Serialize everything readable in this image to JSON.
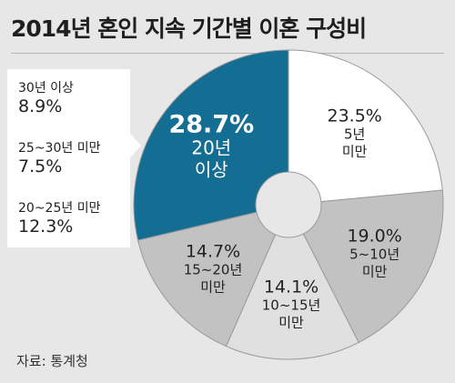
{
  "title": "2014년 혼인 지속 기간별 이혼 구성비",
  "source": "자료: 통계청",
  "chart_data": {
    "type": "pie",
    "style": "donut",
    "start_angle_deg": 0,
    "direction": "clockwise",
    "slices": [
      {
        "label": "5년 미만",
        "value": 23.5,
        "display": "23.5%",
        "color": "#ffffff",
        "text_color": "#222222"
      },
      {
        "label": "5~10년 미만",
        "value": 19.0,
        "display": "19.0%",
        "color": "#c2c2c2",
        "text_color": "#222222"
      },
      {
        "label": "10~15년 미만",
        "value": 14.1,
        "display": "14.1%",
        "color": "#e0e0e0",
        "text_color": "#222222"
      },
      {
        "label": "15~20년 미만",
        "value": 14.7,
        "display": "14.7%",
        "color": "#c2c2c2",
        "text_color": "#222222"
      },
      {
        "label": "20년 이상",
        "value": 28.7,
        "display": "28.7%",
        "color": "#146e93",
        "text_color": "#ffffff"
      }
    ],
    "breakdown_of": "20년 이상",
    "breakdown": [
      {
        "label": "30년 이상",
        "value": 8.9,
        "display": "8.9%"
      },
      {
        "label": "25~30년 미만",
        "value": 7.5,
        "display": "7.5%"
      },
      {
        "label": "20~25년 미만",
        "value": 12.3,
        "display": "12.3%"
      }
    ]
  }
}
